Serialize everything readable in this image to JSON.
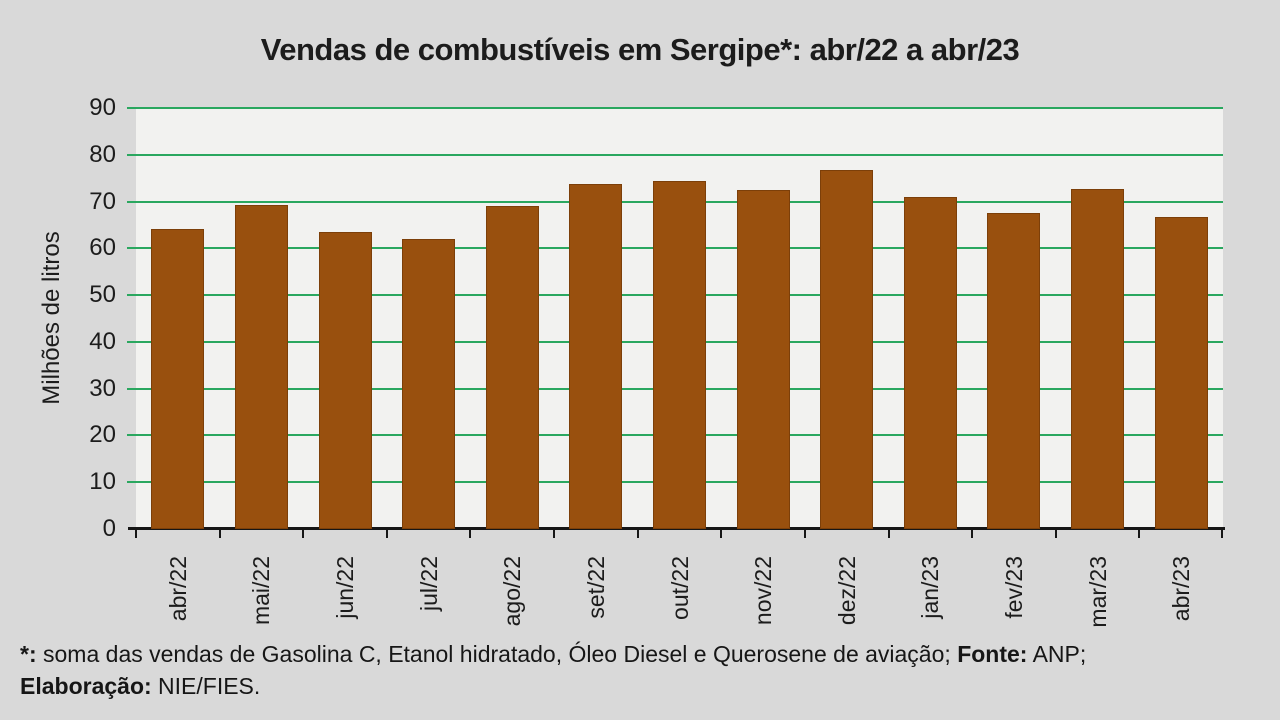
{
  "chart_data": {
    "type": "bar",
    "title": "Vendas de combustíveis em Sergipe*: abr/22 a abr/23",
    "categories": [
      "abr/22",
      "mai/22",
      "jun/22",
      "jul/22",
      "ago/22",
      "set/22",
      "out/22",
      "nov/22",
      "dez/22",
      "jan/23",
      "fev/23",
      "mar/23",
      "abr/23"
    ],
    "values": [
      64.2,
      69.3,
      63.6,
      62.0,
      69.0,
      73.7,
      74.5,
      72.5,
      76.7,
      70.9,
      67.6,
      72.7,
      66.8
    ],
    "xlabel": "",
    "ylabel": "Milhões de litros",
    "ylim": [
      0,
      90
    ],
    "ytick_step": 10,
    "grid": true,
    "legend": false,
    "bar_color": "#99500e",
    "bar_border_color": "#7c3f09",
    "grid_color": "#2aa75f",
    "plot_bg": "#f2f2f0",
    "outer_bg": "#d9d9d9"
  },
  "footnote": {
    "star_label": "*:",
    "star_text": " soma das vendas de Gasolina C, Etanol hidratado, Óleo Diesel e Querosene de aviação; ",
    "fonte_label": "Fonte:",
    "fonte_text": " ANP; ",
    "elaboracao_label": "Elaboração:",
    "elaboracao_text": " NIE/FIES."
  }
}
